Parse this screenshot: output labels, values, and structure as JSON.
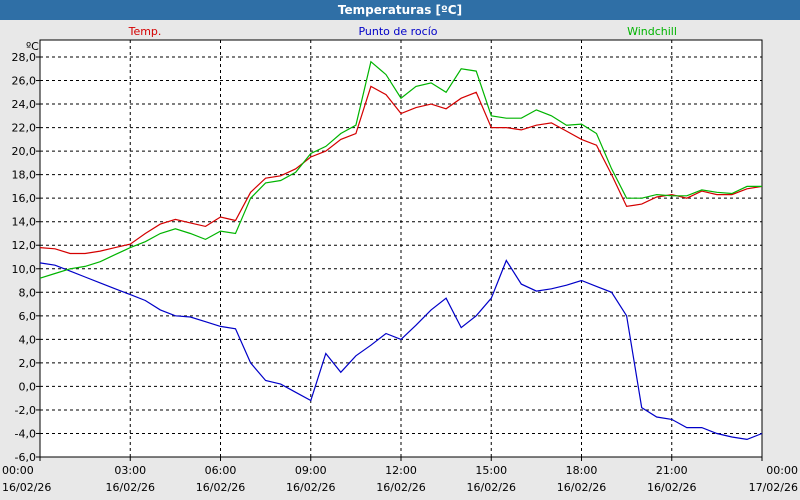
{
  "window_title": "Temperaturas [ºC]",
  "colors": {
    "temp": "#d40000",
    "dew": "#0000c8",
    "windchill": "#00b400",
    "title_bar": "#2f6fa6"
  },
  "chart_data": {
    "type": "line",
    "title": "Temperaturas [ºC]",
    "ylabel": "ºC",
    "ylim": [
      -6,
      28
    ],
    "xlim": [
      "16/02/26 00:00",
      "17/02/26 00:00"
    ],
    "yticks": [
      "-6,0",
      "-4,0",
      "-2,0",
      "0,0",
      "2,0",
      "4,0",
      "6,0",
      "8,0",
      "10,0",
      "12,0",
      "14,0",
      "16,0",
      "18,0",
      "20,0",
      "22,0",
      "24,0",
      "26,0",
      "28,0"
    ],
    "xticks": [
      {
        "time": "00:00",
        "date": "16/02/26"
      },
      {
        "time": "03:00",
        "date": "16/02/26"
      },
      {
        "time": "06:00",
        "date": "16/02/26"
      },
      {
        "time": "09:00",
        "date": "16/02/26"
      },
      {
        "time": "12:00",
        "date": "16/02/26"
      },
      {
        "time": "15:00",
        "date": "16/02/26"
      },
      {
        "time": "18:00",
        "date": "16/02/26"
      },
      {
        "time": "21:00",
        "date": "16/02/26"
      },
      {
        "time": "00:00",
        "date": "17/02/26"
      }
    ],
    "grid": true,
    "series": [
      {
        "name": "Temp.",
        "color": "#d40000",
        "x": [
          "16/02/26 00:00",
          "16/02/26 00:30",
          "16/02/26 01:00",
          "16/02/26 01:30",
          "16/02/26 02:00",
          "16/02/26 02:30",
          "16/02/26 03:00",
          "16/02/26 03:30",
          "16/02/26 04:00",
          "16/02/26 04:30",
          "16/02/26 05:00",
          "16/02/26 05:30",
          "16/02/26 06:00",
          "16/02/26 06:30",
          "16/02/26 07:00",
          "16/02/26 07:30",
          "16/02/26 08:00",
          "16/02/26 08:30",
          "16/02/26 09:00",
          "16/02/26 09:30",
          "16/02/26 10:00",
          "16/02/26 10:30",
          "16/02/26 11:00",
          "16/02/26 11:30",
          "16/02/26 12:00",
          "16/02/26 12:30",
          "16/02/26 13:00",
          "16/02/26 13:30",
          "16/02/26 14:00",
          "16/02/26 14:30",
          "16/02/26 15:00",
          "16/02/26 15:30",
          "16/02/26 16:00",
          "16/02/26 16:30",
          "16/02/26 17:00",
          "16/02/26 17:30",
          "16/02/26 18:00",
          "16/02/26 18:30",
          "16/02/26 19:00",
          "16/02/26 19:30",
          "16/02/26 20:00",
          "16/02/26 20:30",
          "16/02/26 21:00",
          "16/02/26 21:30",
          "16/02/26 22:00",
          "16/02/26 22:30",
          "16/02/26 23:00",
          "16/02/26 23:30",
          "17/02/26 00:00"
        ],
        "y": [
          11.8,
          11.7,
          11.3,
          11.3,
          11.5,
          11.8,
          12.1,
          13.0,
          13.8,
          14.2,
          13.9,
          13.6,
          14.4,
          14.1,
          16.5,
          17.7,
          17.9,
          18.5,
          19.5,
          20.0,
          21.0,
          21.5,
          25.5,
          24.8,
          23.2,
          23.7,
          24.0,
          23.6,
          24.5,
          25.0,
          22.0,
          22.0,
          21.8,
          22.2,
          22.4,
          21.7,
          21.0,
          20.5,
          18.0,
          15.3,
          15.5,
          16.1,
          16.3,
          16.0,
          16.6,
          16.3,
          16.3,
          16.8,
          17.0
        ]
      },
      {
        "name": "Punto de rocío",
        "color": "#0000c8",
        "x": [
          "16/02/26 00:00",
          "16/02/26 00:30",
          "16/02/26 01:00",
          "16/02/26 01:30",
          "16/02/26 02:00",
          "16/02/26 02:30",
          "16/02/26 03:00",
          "16/02/26 03:30",
          "16/02/26 04:00",
          "16/02/26 04:30",
          "16/02/26 05:00",
          "16/02/26 05:30",
          "16/02/26 06:00",
          "16/02/26 06:30",
          "16/02/26 07:00",
          "16/02/26 07:30",
          "16/02/26 08:00",
          "16/02/26 08:30",
          "16/02/26 09:00",
          "16/02/26 09:30",
          "16/02/26 10:00",
          "16/02/26 10:30",
          "16/02/26 11:00",
          "16/02/26 11:30",
          "16/02/26 12:00",
          "16/02/26 12:30",
          "16/02/26 13:00",
          "16/02/26 13:30",
          "16/02/26 14:00",
          "16/02/26 14:30",
          "16/02/26 15:00",
          "16/02/26 15:30",
          "16/02/26 16:00",
          "16/02/26 16:30",
          "16/02/26 17:00",
          "16/02/26 17:30",
          "16/02/26 18:00",
          "16/02/26 18:30",
          "16/02/26 19:00",
          "16/02/26 19:30",
          "16/02/26 20:00",
          "16/02/26 20:30",
          "16/02/26 21:00",
          "16/02/26 21:30",
          "16/02/26 22:00",
          "16/02/26 22:30",
          "16/02/26 23:00",
          "16/02/26 23:30",
          "17/02/26 00:00"
        ],
        "y": [
          10.5,
          10.3,
          9.8,
          9.3,
          8.8,
          8.3,
          7.8,
          7.3,
          6.5,
          6.0,
          5.9,
          5.5,
          5.1,
          4.9,
          2.0,
          0.5,
          0.2,
          -0.5,
          -1.2,
          2.8,
          1.2,
          2.6,
          3.5,
          4.5,
          4.0,
          5.2,
          6.5,
          7.5,
          5.0,
          6.0,
          7.5,
          10.7,
          8.7,
          8.1,
          8.3,
          8.6,
          9.0,
          8.5,
          8.0,
          6.0,
          -1.8,
          -2.6,
          -2.8,
          -3.5,
          -3.5,
          -4.0,
          -4.3,
          -4.5,
          -4.0
        ]
      },
      {
        "name": "Windchill",
        "color": "#00b400",
        "x": [
          "16/02/26 00:00",
          "16/02/26 00:30",
          "16/02/26 01:00",
          "16/02/26 01:30",
          "16/02/26 02:00",
          "16/02/26 02:30",
          "16/02/26 03:00",
          "16/02/26 03:30",
          "16/02/26 04:00",
          "16/02/26 04:30",
          "16/02/26 05:00",
          "16/02/26 05:30",
          "16/02/26 06:00",
          "16/02/26 06:30",
          "16/02/26 07:00",
          "16/02/26 07:30",
          "16/02/26 08:00",
          "16/02/26 08:30",
          "16/02/26 09:00",
          "16/02/26 09:30",
          "16/02/26 10:00",
          "16/02/26 10:30",
          "16/02/26 11:00",
          "16/02/26 11:30",
          "16/02/26 12:00",
          "16/02/26 12:30",
          "16/02/26 13:00",
          "16/02/26 13:30",
          "16/02/26 14:00",
          "16/02/26 14:30",
          "16/02/26 15:00",
          "16/02/26 15:30",
          "16/02/26 16:00",
          "16/02/26 16:30",
          "16/02/26 17:00",
          "16/02/26 17:30",
          "16/02/26 18:00",
          "16/02/26 18:30",
          "16/02/26 19:00",
          "16/02/26 19:30",
          "16/02/26 20:00",
          "16/02/26 20:30",
          "16/02/26 21:00",
          "16/02/26 21:30",
          "16/02/26 22:00",
          "16/02/26 22:30",
          "16/02/26 23:00",
          "16/02/26 23:30",
          "17/02/26 00:00"
        ],
        "y": [
          9.2,
          9.6,
          10.0,
          10.2,
          10.6,
          11.2,
          11.8,
          12.3,
          13.0,
          13.4,
          13.0,
          12.5,
          13.2,
          13.0,
          16.0,
          17.3,
          17.5,
          18.2,
          19.8,
          20.4,
          21.5,
          22.2,
          27.6,
          26.5,
          24.5,
          25.5,
          25.8,
          25.0,
          27.0,
          26.8,
          23.0,
          22.8,
          22.8,
          23.5,
          23.0,
          22.2,
          22.3,
          21.5,
          18.5,
          16.0,
          16.0,
          16.3,
          16.2,
          16.2,
          16.7,
          16.5,
          16.4,
          17.0,
          17.0
        ]
      }
    ]
  }
}
